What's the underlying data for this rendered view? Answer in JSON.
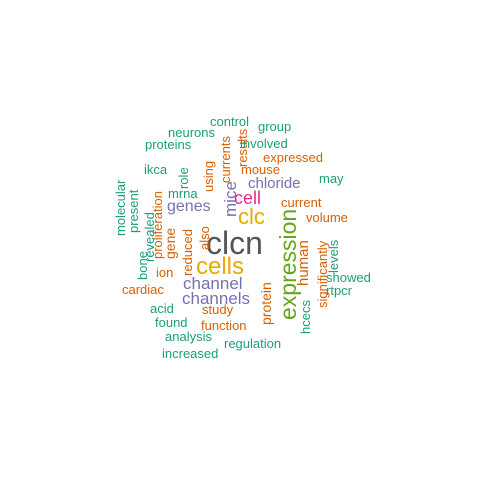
{
  "palette": {
    "teal": "#1b9e77",
    "orange": "#d95f02",
    "purple": "#7570b3",
    "magenta": "#e7298a",
    "green": "#66a61e",
    "gold": "#e6ab02",
    "gray": "#555555"
  },
  "words": [
    {
      "text": "clcn",
      "color": "#555555",
      "vertical": false
    },
    {
      "text": "cells",
      "color": "#e6ab02",
      "vertical": false
    },
    {
      "text": "expression",
      "color": "#66a61e",
      "vertical": true
    },
    {
      "text": "clc",
      "color": "#e6ab02",
      "vertical": false
    },
    {
      "text": "channel",
      "color": "#7570b3",
      "vertical": false
    },
    {
      "text": "channels",
      "color": "#7570b3",
      "vertical": false
    },
    {
      "text": "cell",
      "color": "#e7298a",
      "vertical": false
    },
    {
      "text": "mice",
      "color": "#7570b3",
      "vertical": true
    },
    {
      "text": "genes",
      "color": "#7570b3",
      "vertical": false
    },
    {
      "text": "chloride",
      "color": "#7570b3",
      "vertical": false
    },
    {
      "text": "human",
      "color": "#d95f02",
      "vertical": true
    },
    {
      "text": "protein",
      "color": "#d95f02",
      "vertical": true
    },
    {
      "text": "gene",
      "color": "#d95f02",
      "vertical": true
    },
    {
      "text": "current",
      "color": "#d95f02",
      "vertical": false
    },
    {
      "text": "volume",
      "color": "#d95f02",
      "vertical": false
    },
    {
      "text": "mouse",
      "color": "#d95f02",
      "vertical": false
    },
    {
      "text": "expressed",
      "color": "#d95f02",
      "vertical": false
    },
    {
      "text": "function",
      "color": "#d95f02",
      "vertical": false
    },
    {
      "text": "study",
      "color": "#d95f02",
      "vertical": false
    },
    {
      "text": "cardiac",
      "color": "#d95f02",
      "vertical": false
    },
    {
      "text": "ion",
      "color": "#d95f02",
      "vertical": false
    },
    {
      "text": "reduced",
      "color": "#d95f02",
      "vertical": true
    },
    {
      "text": "proliferation",
      "color": "#d95f02",
      "vertical": true
    },
    {
      "text": "using",
      "color": "#d95f02",
      "vertical": true
    },
    {
      "text": "currents",
      "color": "#d95f02",
      "vertical": true
    },
    {
      "text": "results",
      "color": "#d95f02",
      "vertical": true
    },
    {
      "text": "significantly",
      "color": "#d95f02",
      "vertical": true
    },
    {
      "text": "also",
      "color": "#d95f02",
      "vertical": true
    },
    {
      "text": "control",
      "color": "#1b9e77",
      "vertical": false
    },
    {
      "text": "group",
      "color": "#1b9e77",
      "vertical": false
    },
    {
      "text": "neurons",
      "color": "#1b9e77",
      "vertical": false
    },
    {
      "text": "involved",
      "color": "#1b9e77",
      "vertical": false
    },
    {
      "text": "proteins",
      "color": "#1b9e77",
      "vertical": false
    },
    {
      "text": "ikca",
      "color": "#1b9e77",
      "vertical": false
    },
    {
      "text": "may",
      "color": "#1b9e77",
      "vertical": false
    },
    {
      "text": "mrna",
      "color": "#1b9e77",
      "vertical": false
    },
    {
      "text": "levels",
      "color": "#1b9e77",
      "vertical": true
    },
    {
      "text": "showed",
      "color": "#1b9e77",
      "vertical": false
    },
    {
      "text": "rtpcr",
      "color": "#1b9e77",
      "vertical": false
    },
    {
      "text": "acid",
      "color": "#1b9e77",
      "vertical": false
    },
    {
      "text": "found",
      "color": "#1b9e77",
      "vertical": false
    },
    {
      "text": "analysis",
      "color": "#1b9e77",
      "vertical": false
    },
    {
      "text": "regulation",
      "color": "#1b9e77",
      "vertical": false
    },
    {
      "text": "increased",
      "color": "#1b9e77",
      "vertical": false
    },
    {
      "text": "hcecs",
      "color": "#1b9e77",
      "vertical": true
    },
    {
      "text": "bone",
      "color": "#1b9e77",
      "vertical": true
    },
    {
      "text": "revealed",
      "color": "#1b9e77",
      "vertical": true
    },
    {
      "text": "present",
      "color": "#1b9e77",
      "vertical": true
    },
    {
      "text": "molecular",
      "color": "#1b9e77",
      "vertical": true
    },
    {
      "text": "role",
      "color": "#1b9e77",
      "vertical": true
    }
  ]
}
